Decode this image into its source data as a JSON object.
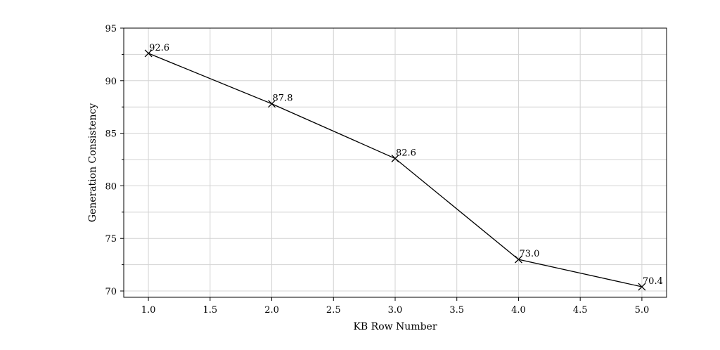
{
  "chart_data": {
    "type": "line",
    "title": "",
    "xlabel": "KB Row Number",
    "ylabel": "Generation Consistency",
    "xlim": [
      0.8,
      5.2
    ],
    "ylim": [
      69.4,
      95
    ],
    "xticks": [
      1.0,
      1.5,
      2.0,
      2.5,
      3.0,
      3.5,
      4.0,
      4.5,
      5.0
    ],
    "xtick_labels": [
      "1.0",
      "1.5",
      "2.0",
      "2.5",
      "3.0",
      "3.5",
      "4.0",
      "4.5",
      "5.0"
    ],
    "yticks": [
      70,
      75,
      80,
      85,
      90,
      95
    ],
    "ytick_labels": [
      "70",
      "75",
      "80",
      "85",
      "90",
      "95"
    ],
    "x_minor_grid": [],
    "y_minor_grid": [
      72.5,
      77.5,
      82.5,
      87.5,
      92.5
    ],
    "grid": true,
    "legend": false,
    "series": [
      {
        "x": [
          1.0,
          2.0,
          3.0,
          4.0,
          5.0
        ],
        "y": [
          92.6,
          87.8,
          82.6,
          73.0,
          70.4
        ],
        "labels": [
          "92.6",
          "87.8",
          "82.6",
          "73.0",
          "70.4"
        ],
        "marker": "x",
        "color": "#000000"
      }
    ],
    "colors": {
      "grid": "#d3d3d3",
      "axis": "#000000",
      "line": "#000000"
    }
  }
}
